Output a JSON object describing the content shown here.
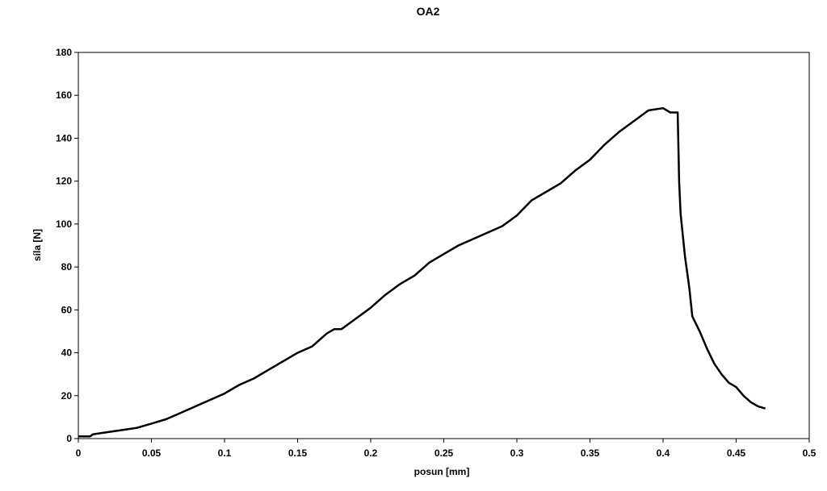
{
  "chart_data": {
    "type": "line",
    "title": "OA2",
    "xlabel": "posun [mm]",
    "ylabel": "síla [N]",
    "xlim": [
      0,
      0.5
    ],
    "ylim": [
      0,
      180
    ],
    "x_ticks": [
      "0",
      "0.05",
      "0.1",
      "0.15",
      "0.2",
      "0.25",
      "0.3",
      "0.35",
      "0.4",
      "0.45",
      "0.5"
    ],
    "y_ticks": [
      "0",
      "20",
      "40",
      "60",
      "80",
      "100",
      "120",
      "140",
      "160",
      "180"
    ],
    "grid": false,
    "legend": "none",
    "line_color": "#000000",
    "series": [
      {
        "x": [
          0,
          0.008,
          0.01,
          0.02,
          0.03,
          0.04,
          0.05,
          0.06,
          0.07,
          0.08,
          0.09,
          0.1,
          0.11,
          0.12,
          0.13,
          0.14,
          0.15,
          0.16,
          0.17,
          0.175,
          0.18,
          0.19,
          0.2,
          0.21,
          0.22,
          0.23,
          0.24,
          0.25,
          0.26,
          0.27,
          0.28,
          0.29,
          0.3,
          0.31,
          0.32,
          0.33,
          0.34,
          0.35,
          0.36,
          0.37,
          0.38,
          0.39,
          0.4,
          0.405,
          0.41,
          0.411,
          0.412,
          0.415,
          0.418,
          0.42,
          0.425,
          0.43,
          0.435,
          0.44,
          0.445,
          0.45,
          0.455,
          0.46,
          0.465,
          0.47
        ],
        "y": [
          1,
          1,
          2,
          3,
          4,
          5,
          7,
          9,
          12,
          15,
          18,
          21,
          25,
          28,
          32,
          36,
          40,
          43,
          49,
          51,
          51,
          56,
          61,
          67,
          72,
          76,
          82,
          86,
          90,
          93,
          96,
          99,
          104,
          111,
          115,
          119,
          125,
          130,
          137,
          143,
          148,
          153,
          154,
          152,
          152,
          120,
          105,
          85,
          70,
          57,
          50,
          42,
          35,
          30,
          26,
          24,
          20,
          17,
          15,
          14
        ]
      }
    ]
  }
}
